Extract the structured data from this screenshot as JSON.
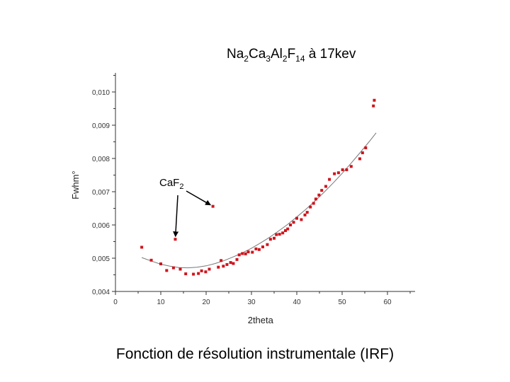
{
  "title": {
    "parts": [
      {
        "t": "Na",
        "sub": "2"
      },
      {
        "t": "Ca",
        "sub": "3"
      },
      {
        "t": "Al",
        "sub": "2"
      },
      {
        "t": "F",
        "sub": "14"
      },
      {
        "t": " à 17kev",
        "sub": ""
      }
    ]
  },
  "caption": "Fonction de résolution instrumentale (IRF)",
  "annotation": {
    "base": "CaF",
    "sub": "2"
  },
  "colors": {
    "points": "#d0141c",
    "fit": "#777777",
    "axis": "#333333"
  },
  "chart_data": {
    "type": "scatter",
    "xlabel": "2theta",
    "ylabel": "Fwhm°",
    "xlim": [
      0,
      65
    ],
    "ylim": [
      0.004,
      0.0105
    ],
    "x_ticks": [
      "0",
      "10",
      "20",
      "30",
      "40",
      "50",
      "60"
    ],
    "y_ticks": [
      "0,004",
      "0,005",
      "0,006",
      "0,007",
      "0,008",
      "0,009",
      "0,010"
    ],
    "grid": false,
    "series": [
      {
        "kind": "points",
        "x": [
          5.8,
          7.9,
          10.0,
          11.3,
          12.8,
          14.3,
          15.5,
          17.2,
          18.3,
          19.0,
          19.9,
          20.7,
          22.7,
          23.3,
          23.8,
          24.6,
          25.4,
          26.0,
          26.8,
          27.3,
          28.0,
          28.7,
          29.3,
          30.2,
          31.0,
          31.7,
          32.5,
          33.5,
          34.2,
          35.0,
          35.5,
          36.2,
          36.9,
          37.5,
          38.0,
          38.6,
          39.3,
          40.0,
          41.0,
          41.8,
          42.3,
          43.0,
          43.7,
          44.2,
          44.9,
          45.5,
          46.4,
          47.2,
          48.3,
          49.2,
          50.1,
          51.0,
          52.0,
          53.9,
          54.5,
          55.2,
          56.9,
          57.1
        ],
        "y": [
          0.00533,
          0.00494,
          0.00483,
          0.00463,
          0.00471,
          0.00467,
          0.00453,
          0.00452,
          0.00454,
          0.00462,
          0.00459,
          0.00467,
          0.00473,
          0.00493,
          0.00476,
          0.00481,
          0.00487,
          0.00484,
          0.00496,
          0.0051,
          0.00514,
          0.00513,
          0.00519,
          0.00518,
          0.00528,
          0.00526,
          0.00534,
          0.00541,
          0.00557,
          0.0056,
          0.00571,
          0.00572,
          0.00576,
          0.00583,
          0.00588,
          0.006,
          0.00608,
          0.0062,
          0.00616,
          0.0063,
          0.00638,
          0.00654,
          0.00665,
          0.00678,
          0.0069,
          0.00704,
          0.00716,
          0.00737,
          0.00754,
          0.00757,
          0.00766,
          0.00766,
          0.00776,
          0.00799,
          0.00817,
          0.00832,
          0.00958,
          0.00975
        ]
      },
      {
        "kind": "points",
        "x": [
          13.2,
          21.5
        ],
        "y": [
          0.00557,
          0.00656
        ]
      },
      {
        "kind": "fit",
        "x": [
          5.8,
          8.0,
          10.0,
          12.0,
          14.0,
          16.0,
          18.0,
          20.0,
          22.0,
          24.0,
          26.0,
          28.0,
          30.0,
          32.0,
          34.0,
          36.0,
          38.0,
          40.0,
          42.0,
          44.0,
          46.0,
          48.0,
          50.0,
          52.0,
          54.0,
          56.0,
          57.5
        ],
        "y": [
          0.00502,
          0.00491,
          0.00482,
          0.00476,
          0.00472,
          0.00471,
          0.00473,
          0.00477,
          0.00484,
          0.00493,
          0.00504,
          0.00516,
          0.0053,
          0.00546,
          0.00563,
          0.00582,
          0.00602,
          0.00624,
          0.00647,
          0.00672,
          0.00698,
          0.00726,
          0.00755,
          0.00786,
          0.00818,
          0.00851,
          0.00877
        ]
      }
    ]
  }
}
